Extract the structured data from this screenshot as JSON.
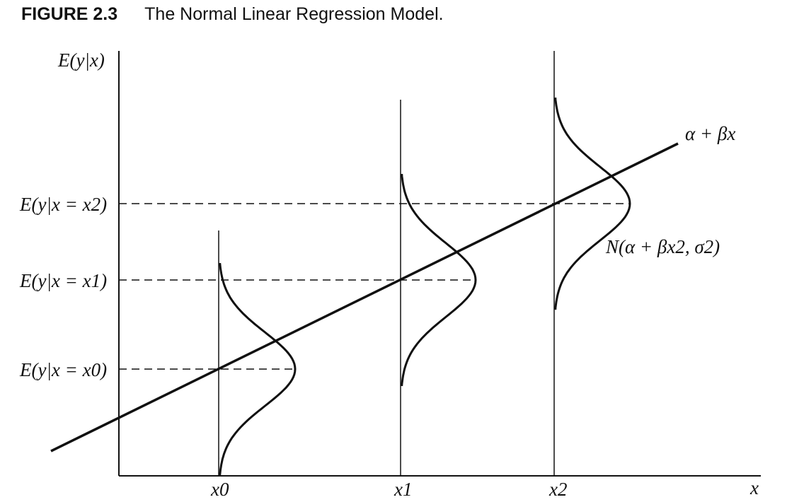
{
  "figure": {
    "number": "FIGURE 2.3",
    "title": "The Normal Linear Regression Model."
  },
  "axes": {
    "y_label": "E(y|x)",
    "x_label": "x"
  },
  "x_ticks": [
    "x0",
    "x1",
    "x2"
  ],
  "level_labels": [
    "E(y|x = x0)",
    "E(y|x = x1)",
    "E(y|x = x2)"
  ],
  "line_label": "α + βx",
  "density_label": "N(α + βx2, σ2)"
}
